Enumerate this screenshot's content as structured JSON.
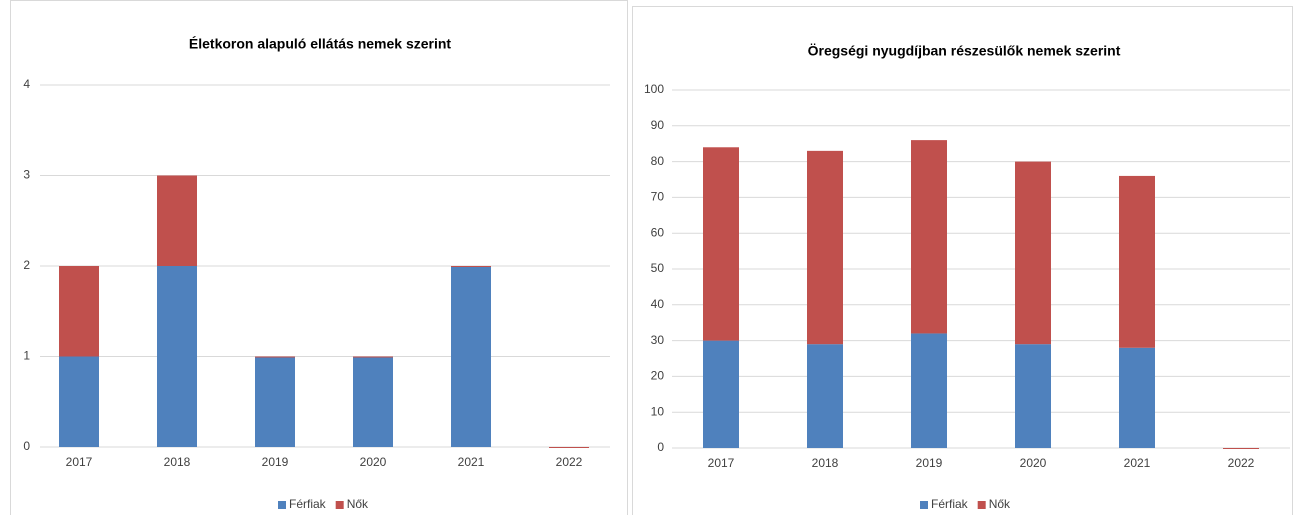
{
  "chart_data": [
    {
      "type": "bar",
      "stacked": true,
      "title": "Életkoron alapuló ellátás nemek szerint",
      "categories": [
        "2017",
        "2018",
        "2019",
        "2020",
        "2021",
        "2022"
      ],
      "series": [
        {
          "name": "Férfiak",
          "color": "#4f81bd",
          "values": [
            1,
            2,
            1,
            1,
            2,
            0
          ]
        },
        {
          "name": "Nők",
          "color": "#c0504d",
          "values": [
            1,
            1,
            0,
            0,
            0,
            0
          ]
        }
      ],
      "ylim": [
        0,
        4
      ],
      "yticks": [
        0,
        1,
        2,
        3,
        4
      ],
      "grid": true,
      "legend": "bottom"
    },
    {
      "type": "bar",
      "stacked": true,
      "title": "Öregségi nyugdíjban részesülők nemek szerint",
      "categories": [
        "2017",
        "2018",
        "2019",
        "2020",
        "2021",
        "2022"
      ],
      "series": [
        {
          "name": "Férfiak",
          "color": "#4f81bd",
          "values": [
            30,
            29,
            32,
            29,
            28,
            0
          ]
        },
        {
          "name": "Nők",
          "color": "#c0504d",
          "values": [
            54,
            54,
            54,
            51,
            48,
            0
          ]
        }
      ],
      "ylim": [
        0,
        100
      ],
      "yticks": [
        0,
        10,
        20,
        30,
        40,
        50,
        60,
        70,
        80,
        90,
        100
      ],
      "grid": true,
      "legend": "bottom"
    }
  ]
}
